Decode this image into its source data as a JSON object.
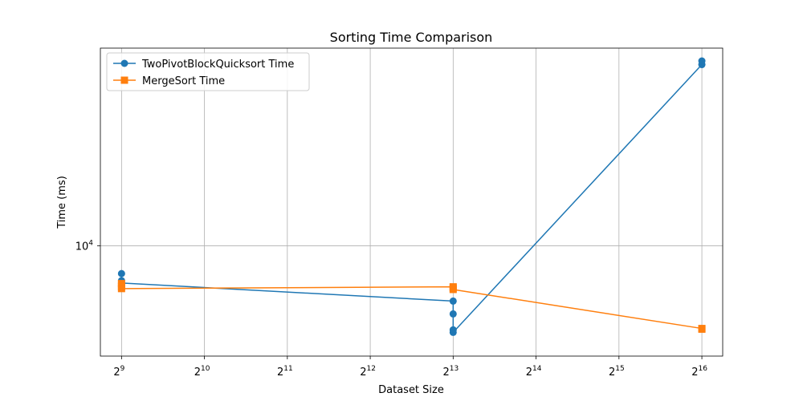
{
  "chart_data": {
    "type": "line",
    "title": "Sorting Time Comparison",
    "xlabel": "Dataset Size",
    "ylabel": "Time (ms)",
    "xscale": "log2",
    "yscale": "log",
    "xlim": [
      429,
      78000
    ],
    "ylim": [
      6440,
      22000
    ],
    "x_ticks": [
      {
        "base": "2",
        "exp": "9",
        "value": 512
      },
      {
        "base": "2",
        "exp": "10",
        "value": 1024
      },
      {
        "base": "2",
        "exp": "11",
        "value": 2048
      },
      {
        "base": "2",
        "exp": "12",
        "value": 4096
      },
      {
        "base": "2",
        "exp": "13",
        "value": 8192
      },
      {
        "base": "2",
        "exp": "14",
        "value": 16384
      },
      {
        "base": "2",
        "exp": "15",
        "value": 32768
      },
      {
        "base": "2",
        "exp": "16",
        "value": 65536
      }
    ],
    "y_ticks": [
      {
        "base": "10",
        "exp": "4",
        "value": 10000
      }
    ],
    "grid": true,
    "legend_position": "top-left",
    "series": [
      {
        "name": "TwoPivotBlockQuicksort Time",
        "color": "#1f77b4",
        "marker": "circle",
        "points": [
          {
            "x": 512,
            "y": 8950
          },
          {
            "x": 512,
            "y": 8700
          },
          {
            "x": 512,
            "y": 8620
          },
          {
            "x": 8192,
            "y": 8020
          },
          {
            "x": 8192,
            "y": 7620
          },
          {
            "x": 8192,
            "y": 7150
          },
          {
            "x": 8192,
            "y": 7080
          },
          {
            "x": 65536,
            "y": 20600
          },
          {
            "x": 65536,
            "y": 20900
          }
        ]
      },
      {
        "name": "MergeSort Time",
        "color": "#ff7f0e",
        "marker": "square",
        "points": [
          {
            "x": 512,
            "y": 8600
          },
          {
            "x": 512,
            "y": 8500
          },
          {
            "x": 512,
            "y": 8430
          },
          {
            "x": 8192,
            "y": 8490
          },
          {
            "x": 8192,
            "y": 8450
          },
          {
            "x": 8192,
            "y": 8400
          },
          {
            "x": 65536,
            "y": 7190
          },
          {
            "x": 65536,
            "y": 7170
          }
        ]
      }
    ]
  }
}
